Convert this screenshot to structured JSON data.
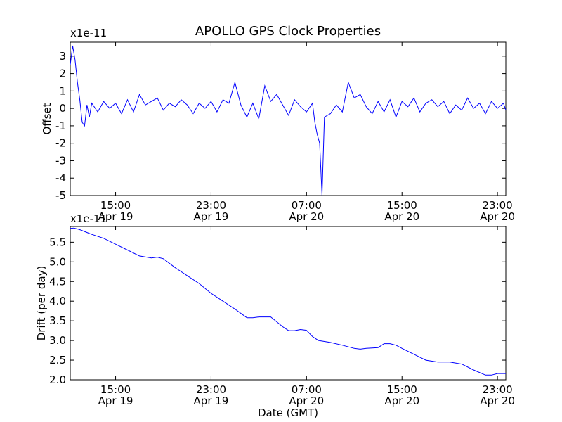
{
  "figure_title": "APOLLO GPS Clock Properties",
  "colors": {
    "series": "#0000ff",
    "axes": "#000000",
    "background": "#ffffff"
  },
  "chart_data": [
    {
      "type": "line",
      "name": "offset-panel",
      "ylabel": "Offset",
      "xlabel": "",
      "multiplier": "x1e-11",
      "x_unit": "hours since Apr 19 00:00 GMT",
      "xlim": [
        11.2,
        47.7
      ],
      "ylim": [
        -5,
        3.8
      ],
      "yticks": [
        3,
        2,
        1,
        0,
        -1,
        -2,
        -3,
        -4,
        -5
      ],
      "ytick_labels": [
        "3",
        "2",
        "1",
        "0",
        "-1",
        "-2",
        "-3",
        "-4",
        "-5"
      ],
      "xticks": [
        {
          "x": 15,
          "time": "15:00",
          "date": "Apr 19"
        },
        {
          "x": 23,
          "time": "23:00",
          "date": "Apr 19"
        },
        {
          "x": 31,
          "time": "07:00",
          "date": "Apr 20"
        },
        {
          "x": 39,
          "time": "15:00",
          "date": "Apr 20"
        },
        {
          "x": 47,
          "time": "23:00",
          "date": "Apr 20"
        }
      ],
      "series": [
        {
          "name": "offset",
          "color": "#0000ff",
          "x": [
            11.2,
            11.4,
            11.6,
            11.8,
            12.0,
            12.2,
            12.4,
            12.6,
            12.8,
            13.0,
            13.5,
            14.0,
            14.5,
            15.0,
            15.5,
            16.0,
            16.5,
            17.0,
            17.5,
            18.0,
            18.5,
            19.0,
            19.5,
            20.0,
            20.5,
            21.0,
            21.5,
            22.0,
            22.5,
            23.0,
            23.5,
            24.0,
            24.5,
            25.0,
            25.5,
            26.0,
            26.5,
            27.0,
            27.5,
            28.0,
            28.5,
            29.0,
            29.5,
            30.0,
            30.5,
            31.0,
            31.5,
            31.7,
            31.9,
            32.1,
            32.3,
            32.5,
            33.0,
            33.5,
            34.0,
            34.5,
            35.0,
            35.5,
            36.0,
            36.5,
            37.0,
            37.5,
            38.0,
            38.5,
            39.0,
            39.5,
            40.0,
            40.5,
            41.0,
            41.5,
            42.0,
            42.5,
            43.0,
            43.5,
            44.0,
            44.5,
            45.0,
            45.5,
            46.0,
            46.5,
            47.0,
            47.5,
            47.7
          ],
          "y": [
            2.5,
            3.6,
            2.8,
            1.5,
            0.5,
            -0.8,
            -1.0,
            0.2,
            -0.5,
            0.3,
            -0.2,
            0.4,
            0.0,
            0.3,
            -0.3,
            0.5,
            -0.2,
            0.8,
            0.2,
            0.4,
            0.6,
            -0.1,
            0.3,
            0.1,
            0.5,
            0.2,
            -0.3,
            0.3,
            0.0,
            0.4,
            -0.2,
            0.5,
            0.3,
            1.5,
            0.2,
            -0.5,
            0.3,
            -0.6,
            1.3,
            0.4,
            0.8,
            0.2,
            -0.4,
            0.5,
            0.1,
            -0.2,
            0.3,
            -0.8,
            -1.5,
            -2.0,
            -5.0,
            -0.5,
            -0.3,
            0.2,
            -0.2,
            1.5,
            0.6,
            0.8,
            0.1,
            -0.3,
            0.4,
            -0.2,
            0.5,
            -0.5,
            0.4,
            0.1,
            0.6,
            -0.2,
            0.3,
            0.5,
            0.1,
            0.4,
            -0.3,
            0.2,
            -0.1,
            0.6,
            0.0,
            0.3,
            -0.3,
            0.4,
            0.0,
            0.3,
            -0.1
          ]
        }
      ]
    },
    {
      "type": "line",
      "name": "drift-panel",
      "ylabel": "Drift (per day)",
      "xlabel": "Date (GMT)",
      "multiplier": "x1e-11",
      "x_unit": "hours since Apr 19 00:00 GMT",
      "xlim": [
        11.2,
        47.7
      ],
      "ylim": [
        2.0,
        5.9
      ],
      "yticks": [
        5.5,
        5.0,
        4.5,
        4.0,
        3.5,
        3.0,
        2.5,
        2.0
      ],
      "ytick_labels": [
        "5.5",
        "5.0",
        "4.5",
        "4.0",
        "3.5",
        "3.0",
        "2.5",
        "2.0"
      ],
      "xticks": [
        {
          "x": 15,
          "time": "15:00",
          "date": "Apr 19"
        },
        {
          "x": 23,
          "time": "23:00",
          "date": "Apr 19"
        },
        {
          "x": 31,
          "time": "07:00",
          "date": "Apr 20"
        },
        {
          "x": 39,
          "time": "15:00",
          "date": "Apr 20"
        },
        {
          "x": 47,
          "time": "23:00",
          "date": "Apr 20"
        }
      ],
      "series": [
        {
          "name": "drift",
          "color": "#0000ff",
          "x": [
            11.2,
            11.5,
            12.0,
            13.0,
            14.0,
            15.0,
            16.0,
            17.0,
            18.0,
            18.5,
            19.0,
            20.0,
            21.0,
            22.0,
            23.0,
            24.0,
            25.0,
            26.0,
            26.5,
            27.0,
            28.0,
            29.0,
            29.5,
            30.0,
            30.5,
            31.0,
            31.5,
            32.0,
            33.0,
            34.0,
            35.0,
            35.5,
            36.0,
            37.0,
            37.5,
            38.0,
            38.5,
            39.0,
            40.0,
            41.0,
            42.0,
            43.0,
            44.0,
            45.0,
            46.0,
            46.5,
            47.0,
            47.7
          ],
          "y": [
            5.85,
            5.86,
            5.82,
            5.7,
            5.6,
            5.45,
            5.3,
            5.15,
            5.1,
            5.12,
            5.08,
            4.85,
            4.65,
            4.45,
            4.2,
            4.0,
            3.8,
            3.58,
            3.58,
            3.6,
            3.6,
            3.35,
            3.25,
            3.25,
            3.28,
            3.26,
            3.1,
            3.0,
            2.95,
            2.88,
            2.8,
            2.78,
            2.8,
            2.82,
            2.92,
            2.92,
            2.88,
            2.8,
            2.65,
            2.5,
            2.45,
            2.45,
            2.4,
            2.25,
            2.12,
            2.12,
            2.16,
            2.16
          ]
        }
      ]
    }
  ]
}
